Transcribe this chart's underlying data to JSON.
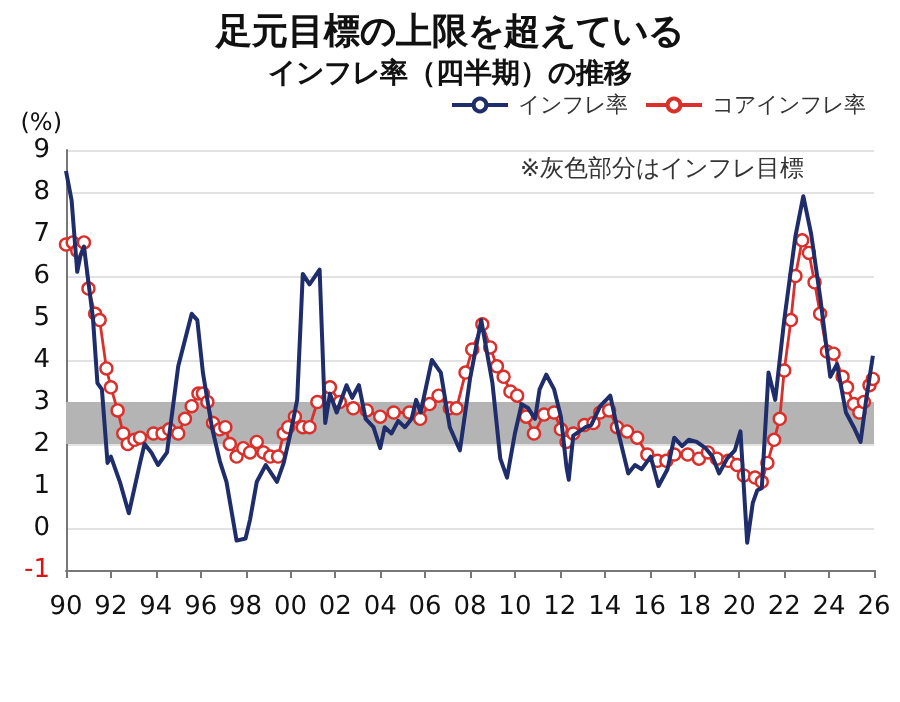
{
  "chart_data": {
    "type": "line",
    "title": "足元目標の上限を超えている",
    "subtitle": "インフレ率（四半期）の推移",
    "ylabel": "(%)",
    "annotations": [
      "※灰色部分はインフレ目標"
    ],
    "xlim": [
      1990,
      2026
    ],
    "xticks": [
      {
        "value": 1990,
        "label": "90"
      },
      {
        "value": 1992,
        "label": "92"
      },
      {
        "value": 1994,
        "label": "94"
      },
      {
        "value": 1996,
        "label": "96"
      },
      {
        "value": 1998,
        "label": "98"
      },
      {
        "value": 2000,
        "label": "00"
      },
      {
        "value": 2002,
        "label": "02"
      },
      {
        "value": 2004,
        "label": "04"
      },
      {
        "value": 2006,
        "label": "06"
      },
      {
        "value": 2008,
        "label": "08"
      },
      {
        "value": 2010,
        "label": "10"
      },
      {
        "value": 2012,
        "label": "12"
      },
      {
        "value": 2014,
        "label": "14"
      },
      {
        "value": 2016,
        "label": "16"
      },
      {
        "value": 2018,
        "label": "18"
      },
      {
        "value": 2020,
        "label": "20"
      },
      {
        "value": 2022,
        "label": "22"
      },
      {
        "value": 2024,
        "label": "24"
      },
      {
        "value": 2026,
        "label": "26"
      }
    ],
    "ylim": [
      -1,
      9
    ],
    "yticks": [
      -1,
      0,
      1,
      2,
      3,
      4,
      5,
      6,
      7,
      8,
      9
    ],
    "grid": "y",
    "legend": "top right",
    "bands": [
      {
        "axis": "y",
        "from": 2,
        "to": 3,
        "color": "#b4b4b4"
      }
    ],
    "series": [
      {
        "name": "インフレ率",
        "color": "#1f2d6b",
        "marker": "none",
        "x": [
          1990.0,
          1990.25,
          1990.5,
          1990.65,
          1990.8,
          1991.2,
          1991.4,
          1991.6,
          1991.85,
          1992.0,
          1992.4,
          1992.8,
          1993.3,
          1993.5,
          1993.8,
          1994.1,
          1994.5,
          1995.0,
          1995.6,
          1995.85,
          1996.1,
          1996.5,
          1996.85,
          1997.15,
          1997.6,
          1998.0,
          1998.2,
          1998.5,
          1998.9,
          1999.4,
          1999.7,
          2000.0,
          2000.3,
          2000.55,
          2000.85,
          2001.3,
          2001.55,
          2001.76,
          2002.06,
          2002.5,
          2002.75,
          2003.05,
          2003.35,
          2003.7,
          2004.0,
          2004.2,
          2004.5,
          2004.8,
          2005.1,
          2005.4,
          2005.6,
          2005.8,
          2006.3,
          2006.7,
          2007.1,
          2007.55,
          2008.0,
          2008.5,
          2009.0,
          2009.35,
          2009.65,
          2010.0,
          2010.3,
          2010.6,
          2010.9,
          2011.1,
          2011.4,
          2011.75,
          2012.05,
          2012.3,
          2012.4,
          2012.6,
          2013.15,
          2013.4,
          2013.8,
          2014.25,
          2014.55,
          2015.05,
          2015.35,
          2015.65,
          2016.05,
          2016.4,
          2016.8,
          2017.1,
          2017.45,
          2017.75,
          2018.1,
          2018.5,
          2018.8,
          2019.1,
          2019.45,
          2019.8,
          2020.05,
          2020.35,
          2020.6,
          2020.8,
          2021.0,
          2021.3,
          2021.6,
          2022.0,
          2022.5,
          2022.85,
          2023.2,
          2023.6,
          2024.05,
          2024.35,
          2024.75,
          2025.1,
          2025.4,
          2025.65,
          2025.95
        ],
        "values": [
          8.5,
          7.8,
          6.1,
          6.5,
          6.7,
          5.0,
          3.45,
          3.3,
          1.55,
          1.7,
          1.1,
          0.35,
          1.55,
          2.0,
          1.8,
          1.5,
          1.8,
          3.85,
          5.1,
          4.95,
          3.7,
          2.4,
          1.6,
          1.1,
          -0.3,
          -0.25,
          0.2,
          1.1,
          1.5,
          1.1,
          1.55,
          2.25,
          3.05,
          6.05,
          5.8,
          6.15,
          2.5,
          3.2,
          2.75,
          3.4,
          3.1,
          3.4,
          2.6,
          2.4,
          1.9,
          2.4,
          2.25,
          2.55,
          2.4,
          2.6,
          3.05,
          2.75,
          4.0,
          3.7,
          2.4,
          1.85,
          3.55,
          4.95,
          3.45,
          1.65,
          1.2,
          2.25,
          2.95,
          2.85,
          2.6,
          3.3,
          3.65,
          3.3,
          2.65,
          1.45,
          1.15,
          2.2,
          2.4,
          2.45,
          2.9,
          3.15,
          2.4,
          1.3,
          1.5,
          1.4,
          1.7,
          1.0,
          1.4,
          2.15,
          1.95,
          2.1,
          2.05,
          1.9,
          1.7,
          1.3,
          1.65,
          1.85,
          2.3,
          -0.35,
          0.6,
          0.9,
          0.95,
          3.7,
          3.05,
          4.95,
          6.95,
          7.9,
          7.0,
          5.5,
          3.6,
          3.9,
          2.75,
          2.4,
          2.05,
          3.05,
          4.1
        ]
      },
      {
        "name": "コアインフレ率",
        "color": "#d9302c",
        "marker": "circle",
        "x": [
          1990.0,
          1990.3,
          1990.5,
          1990.8,
          1991.0,
          1991.3,
          1991.5,
          1991.8,
          1992.0,
          1992.3,
          1992.55,
          1992.75,
          1993.05,
          1993.3,
          1993.9,
          1994.3,
          1994.6,
          1995.0,
          1995.3,
          1995.6,
          1995.9,
          1996.1,
          1996.3,
          1996.55,
          1996.85,
          1997.1,
          1997.3,
          1997.6,
          1997.9,
          1998.2,
          1998.5,
          1998.8,
          1999.1,
          1999.45,
          1999.7,
          1999.9,
          2000.2,
          2000.55,
          2000.85,
          2001.2,
          2001.76,
          2002.2,
          2002.8,
          2003.4,
          2004.0,
          2004.6,
          2005.3,
          2005.78,
          2006.2,
          2006.6,
          2007.1,
          2007.4,
          2007.8,
          2008.1,
          2008.55,
          2008.9,
          2009.2,
          2009.5,
          2009.8,
          2010.1,
          2010.5,
          2010.85,
          2011.3,
          2011.75,
          2012.05,
          2012.3,
          2012.6,
          2013.1,
          2013.5,
          2013.8,
          2014.2,
          2014.55,
          2015.0,
          2015.45,
          2015.9,
          2016.35,
          2016.75,
          2017.1,
          2017.7,
          2018.2,
          2018.6,
          2019.0,
          2019.5,
          2019.9,
          2020.2,
          2020.7,
          2021.0,
          2021.25,
          2021.55,
          2021.8,
          2022.0,
          2022.3,
          2022.5,
          2022.8,
          2023.1,
          2023.35,
          2023.6,
          2023.9,
          2024.2,
          2024.6,
          2024.8,
          2025.1,
          2025.35,
          2025.55,
          2025.8,
          2025.95
        ],
        "values": [
          6.75,
          6.8,
          6.6,
          6.8,
          5.7,
          5.1,
          4.95,
          3.8,
          3.35,
          2.8,
          2.25,
          2.0,
          2.1,
          2.15,
          2.25,
          2.25,
          2.35,
          2.25,
          2.6,
          2.9,
          3.2,
          3.2,
          3.0,
          2.5,
          2.35,
          2.4,
          2.0,
          1.7,
          1.9,
          1.8,
          2.05,
          1.8,
          1.7,
          1.7,
          2.25,
          2.4,
          2.65,
          2.4,
          2.4,
          3.0,
          3.35,
          3.0,
          2.85,
          2.8,
          2.65,
          2.75,
          2.75,
          2.6,
          2.95,
          3.15,
          2.85,
          2.85,
          3.7,
          4.25,
          4.85,
          4.3,
          3.85,
          3.6,
          3.25,
          3.15,
          2.65,
          2.25,
          2.7,
          2.75,
          2.35,
          2.05,
          2.25,
          2.45,
          2.5,
          2.75,
          2.8,
          2.4,
          2.3,
          2.15,
          1.75,
          1.6,
          1.6,
          1.75,
          1.75,
          1.65,
          1.8,
          1.65,
          1.6,
          1.5,
          1.25,
          1.2,
          1.1,
          1.55,
          2.1,
          2.6,
          3.75,
          4.95,
          6.0,
          6.85,
          6.55,
          5.85,
          5.1,
          4.2,
          4.15,
          3.6,
          3.35,
          2.95,
          2.75,
          3.0,
          3.4,
          3.55
        ]
      }
    ]
  }
}
